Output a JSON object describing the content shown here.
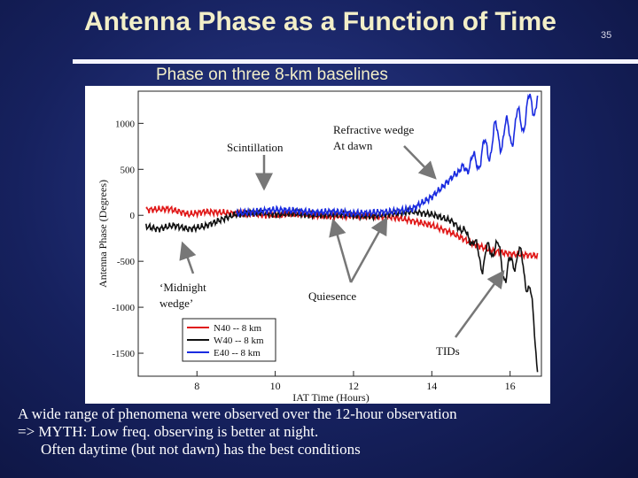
{
  "slide": {
    "title": "Antenna Phase as a Function of Time",
    "number": "35",
    "subtitle": "Phase on three 8-km baselines"
  },
  "caption": {
    "line1": "A wide range of phenomena were observed over the 12-hour observation",
    "line2": "=> MYTH: Low freq. observing is better at night.",
    "line3": "Often daytime (but not dawn) has the best conditions"
  },
  "chart_data": {
    "type": "line",
    "xlabel": "IAT Time (Hours)",
    "ylabel": "Antenna Phase (Degrees)",
    "xlim": [
      6.5,
      16.8
    ],
    "ylim": [
      -1750,
      1350
    ],
    "xticks": [
      8,
      10,
      12,
      14,
      16
    ],
    "yticks": [
      1000,
      500,
      0,
      -500,
      -1000,
      -1500
    ],
    "xtick_labels": [
      "8",
      "10",
      "12",
      "14",
      "16"
    ],
    "ytick_labels": [
      "1000",
      "500",
      "0",
      "-500",
      "-1000",
      "-1500"
    ],
    "series": [
      {
        "name": "N40 -- 8 km",
        "color": "#e01818",
        "x": [
          6.7,
          7.3,
          7.8,
          8.2,
          8.6,
          9.0,
          9.5,
          10.0,
          10.5,
          11.0,
          11.5,
          12.0,
          12.5,
          13.0,
          13.5,
          14.0,
          14.5,
          15.0,
          15.5,
          16.0,
          16.4,
          16.7
        ],
        "y": [
          60,
          70,
          10,
          40,
          30,
          20,
          10,
          0,
          20,
          0,
          -10,
          0,
          -10,
          -20,
          -60,
          -110,
          -190,
          -300,
          -380,
          -420,
          -430,
          -440
        ]
      },
      {
        "name": "W40 -- 8 km",
        "color": "#111111",
        "x": [
          6.7,
          7.0,
          7.4,
          7.8,
          8.2,
          8.6,
          9.0,
          9.5,
          10.0,
          10.5,
          11.0,
          11.5,
          12.0,
          12.5,
          13.0,
          13.5,
          14.0,
          14.5,
          15.0,
          15.3,
          15.6,
          15.9,
          16.2,
          16.5,
          16.7
        ],
        "y": [
          -120,
          -150,
          -110,
          -150,
          -120,
          -50,
          10,
          30,
          10,
          20,
          0,
          10,
          0,
          -10,
          20,
          40,
          10,
          -60,
          -250,
          -520,
          -300,
          -650,
          -400,
          -800,
          -1600
        ],
        "osc": 0.75
      },
      {
        "name": "E40 -- 8 km",
        "color": "#1a2be0",
        "x": [
          9.0,
          9.5,
          10.0,
          10.5,
          11.0,
          11.5,
          12.0,
          12.5,
          13.0,
          13.5,
          14.0,
          14.3,
          14.6,
          15.0,
          15.3,
          15.6,
          16.0,
          16.4,
          16.7
        ],
        "y": [
          20,
          40,
          60,
          50,
          30,
          40,
          20,
          30,
          40,
          70,
          200,
          320,
          450,
          560,
          650,
          850,
          900,
          1100,
          1300
        ],
        "osc": 1.0
      }
    ],
    "annotations": [
      {
        "label": "Scintillation"
      },
      {
        "label": "Refractive wedge"
      },
      {
        "label": "At dawn"
      },
      {
        "label": "‘Midnight"
      },
      {
        "label": "wedge’"
      },
      {
        "label": "Quiesence"
      },
      {
        "label": "TIDs"
      }
    ]
  }
}
